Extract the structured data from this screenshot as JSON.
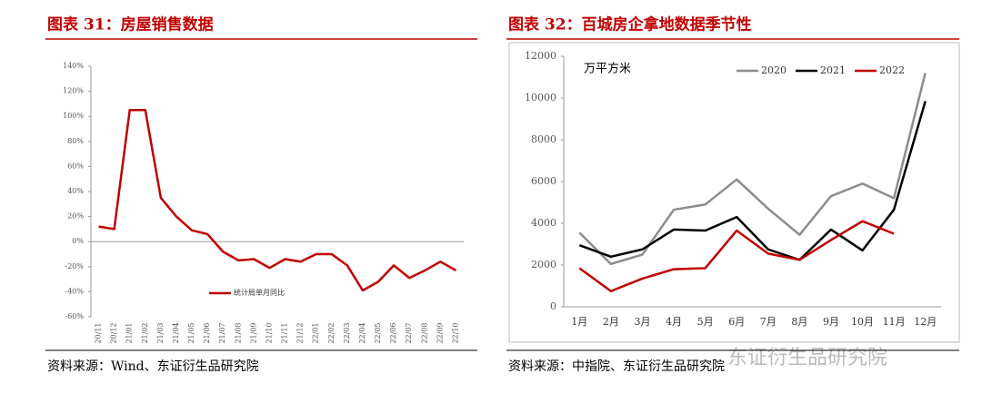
{
  "chart_data": [
    {
      "type": "line",
      "title": "图表 31：房屋销售数据",
      "source": "资料来源：Wind、东证衍生品研究院",
      "categories": [
        "20/11",
        "20/12",
        "21/01",
        "21/02",
        "21/03",
        "21/04",
        "21/05",
        "21/06",
        "21/07",
        "21/08",
        "21/09",
        "21/10",
        "21/11",
        "21/12",
        "22/01",
        "22/02",
        "22/03",
        "22/04",
        "22/05",
        "22/06",
        "22/07",
        "22/08",
        "22/09",
        "22/10"
      ],
      "series": [
        {
          "name": "统计局单月同比",
          "color": "#c00000",
          "values": [
            12,
            10,
            105,
            105,
            35,
            20,
            9,
            6,
            -8,
            -15,
            -14,
            -21,
            -14,
            -16,
            -10,
            -10,
            -19,
            -39,
            -32,
            -19,
            -29,
            -23,
            -16,
            -23
          ]
        }
      ],
      "ylim": [
        -60,
        140
      ],
      "yticks": [
        {
          "value": -60,
          "label": "-60%"
        },
        {
          "value": -40,
          "label": "-40%"
        },
        {
          "value": -20,
          "label": "-20%"
        },
        {
          "value": 0,
          "label": "0%"
        },
        {
          "value": 20,
          "label": "20%"
        },
        {
          "value": 40,
          "label": "40%"
        },
        {
          "value": 60,
          "label": "60%"
        },
        {
          "value": 80,
          "label": "80%"
        },
        {
          "value": 100,
          "label": "100%"
        },
        {
          "value": 120,
          "label": "120%"
        },
        {
          "value": 140,
          "label": "140%"
        }
      ],
      "legend": "bottom-left",
      "grid": false
    },
    {
      "type": "line",
      "title": "图表 32：百城房企拿地数据季节性",
      "source": "资料来源：中指院、东证衍生品研究院",
      "annotation": "万平方米",
      "categories": [
        "1月",
        "2月",
        "3月",
        "4月",
        "5月",
        "6月",
        "7月",
        "8月",
        "9月",
        "10月",
        "11月",
        "12月"
      ],
      "series": [
        {
          "name": "2020",
          "color": "#8c8c8c",
          "values": [
            3550,
            2050,
            2500,
            4650,
            4900,
            6100,
            4700,
            3450,
            5300,
            5900,
            5200,
            11200
          ]
        },
        {
          "name": "2021",
          "color": "#000000",
          "values": [
            2950,
            2400,
            2750,
            3700,
            3650,
            4300,
            2750,
            2250,
            3700,
            2700,
            4650,
            9850
          ]
        },
        {
          "name": "2022",
          "color": "#c00000",
          "values": [
            1850,
            750,
            1350,
            1800,
            1850,
            3650,
            2550,
            2250,
            3200,
            4100,
            3500,
            null
          ]
        }
      ],
      "ylim": [
        0,
        12000
      ],
      "yticks": [
        0,
        2000,
        4000,
        6000,
        8000,
        10000,
        12000
      ],
      "legend": "top-right",
      "grid": false
    }
  ],
  "watermark": "东证衍生品研究院"
}
